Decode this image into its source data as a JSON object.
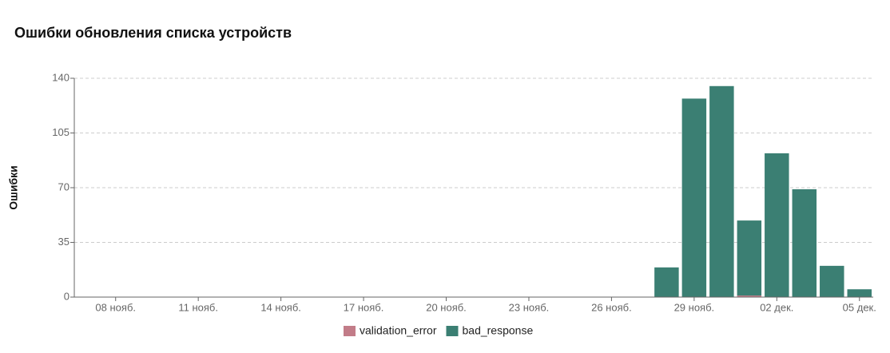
{
  "chart_data": {
    "type": "stacked_bar",
    "title": "Ошибки обновления списка устройств",
    "y_label": "Ошибки",
    "categories": [
      null,
      "08 нояб.",
      null,
      null,
      "11 нояб.",
      null,
      null,
      "14 нояб.",
      null,
      null,
      "17 нояб.",
      null,
      null,
      "20 нояб.",
      null,
      null,
      "23 нояб.",
      null,
      null,
      "26 нояб.",
      null,
      null,
      "29 нояб.",
      null,
      null,
      "02 дек.",
      null,
      null,
      "05 дек."
    ],
    "series": [
      {
        "name": "validation_error",
        "color": "#c27c88",
        "values": [
          0,
          0,
          0,
          0,
          0,
          0,
          0,
          0,
          0,
          0,
          0,
          0,
          0,
          0,
          0,
          0,
          0,
          0,
          0,
          0,
          0,
          0,
          0,
          0,
          1,
          0,
          0,
          0,
          0
        ]
      },
      {
        "name": "bad_response",
        "color": "#3b7f73",
        "values": [
          0,
          0,
          0,
          0,
          0,
          0,
          0,
          0,
          0,
          0,
          0,
          0,
          0,
          0,
          0,
          0,
          0,
          0,
          0,
          0,
          0,
          19,
          127,
          135,
          48,
          92,
          69,
          20,
          5
        ]
      }
    ],
    "ylim": [
      0,
      140
    ],
    "yticks": [
      0,
      35,
      70,
      105,
      140
    ],
    "grid": true
  }
}
